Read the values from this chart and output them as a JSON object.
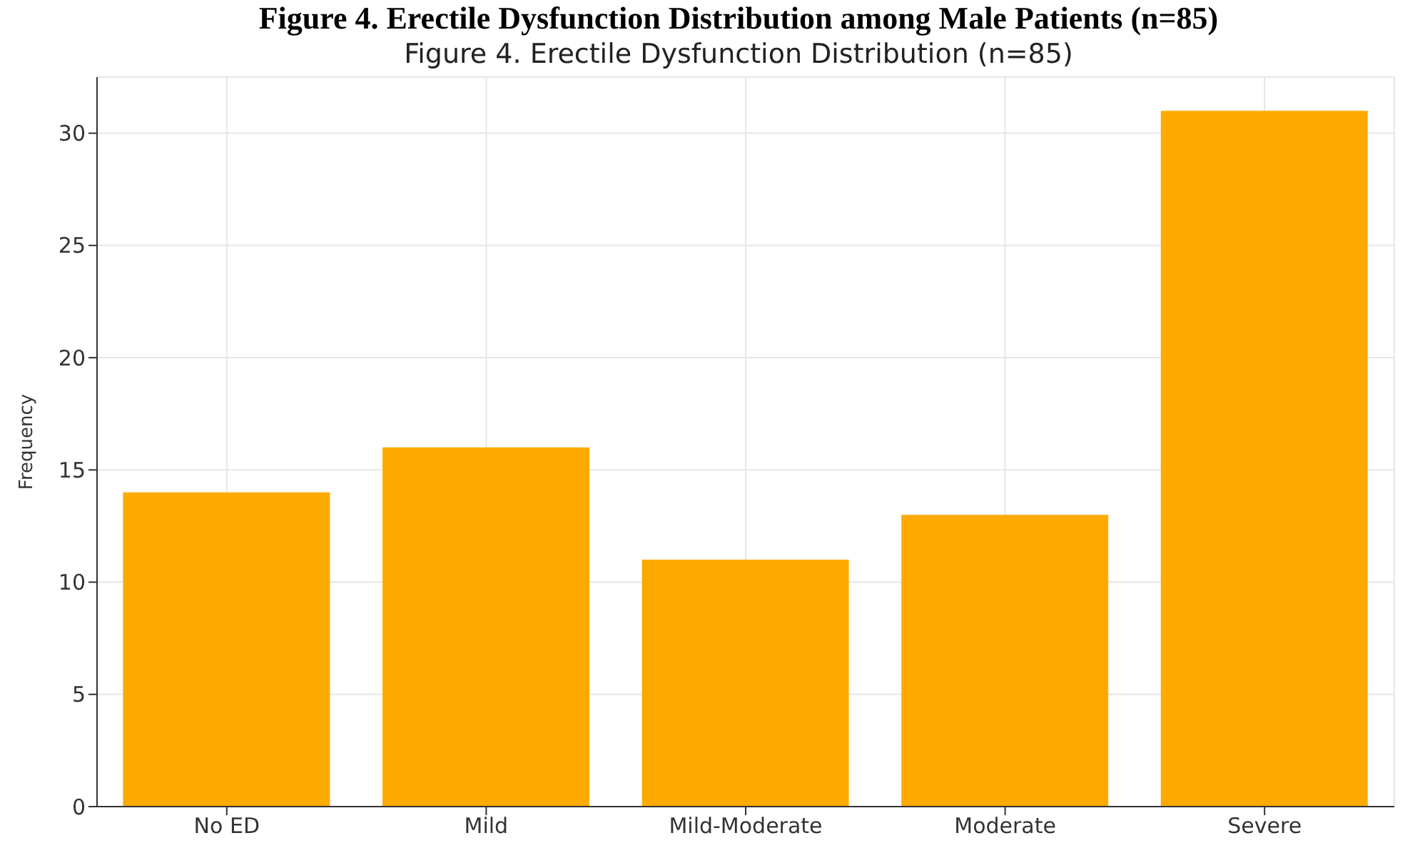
{
  "chart_data": {
    "type": "bar",
    "title": "Figure 4. Erectile Dysfunction Distribution among Male Patients (n=85)",
    "subtitle": "Figure 4. Erectile Dysfunction Distribution (n=85)",
    "ylabel": "Frequency",
    "categories": [
      "No ED",
      "Mild",
      "Mild-Moderate",
      "Moderate",
      "Severe"
    ],
    "values": [
      14,
      16,
      11,
      13,
      31
    ],
    "color": "#ffaa00",
    "ylim": [
      0,
      32.5
    ],
    "yticks": [
      0,
      5,
      10,
      15,
      20,
      25,
      30
    ],
    "grid": true
  }
}
